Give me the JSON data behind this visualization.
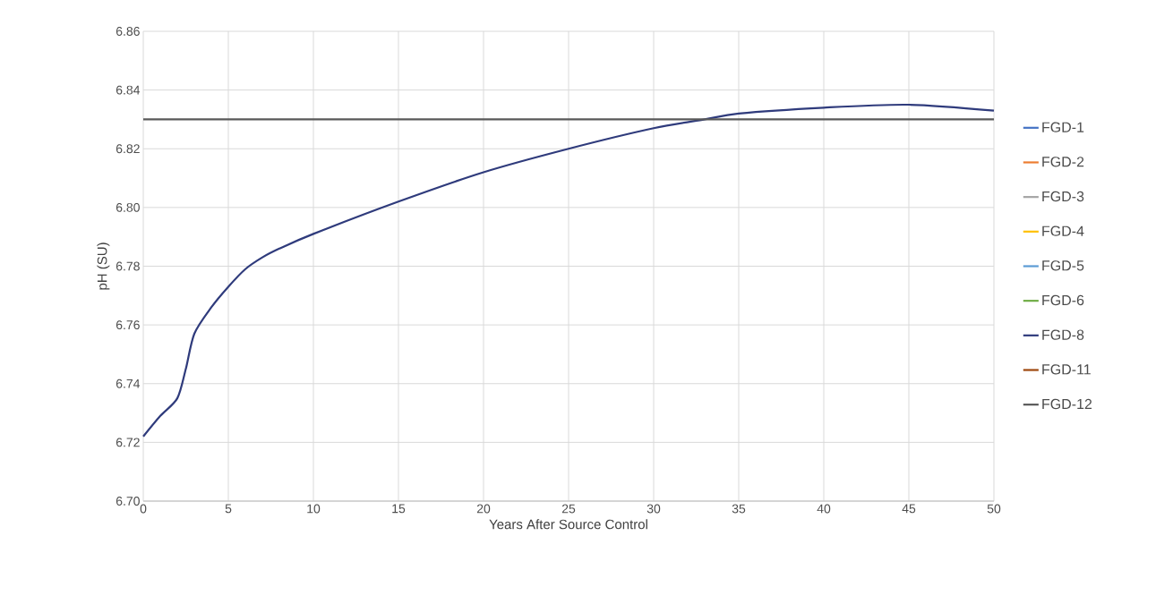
{
  "chart_data": {
    "type": "line",
    "xlabel": "Years After Source Control",
    "ylabel": "pH (SU)",
    "xlim": [
      0,
      50
    ],
    "ylim": [
      6.7,
      6.86
    ],
    "xticks": [
      0,
      5,
      10,
      15,
      20,
      25,
      30,
      35,
      40,
      45,
      50
    ],
    "yticks": [
      {
        "value": 6.7,
        "label": "6.70"
      },
      6.72,
      6.74,
      6.76,
      6.78,
      {
        "value": 6.8,
        "label": "6.80"
      },
      6.82,
      6.84,
      6.86
    ],
    "grid": true,
    "legend": "right",
    "marker": "none",
    "line_style": "solid",
    "series": [
      {
        "name": "FGD-1",
        "color": "#4472c4",
        "values": [
          null
        ]
      },
      {
        "name": "FGD-2",
        "color": "#ed7d31",
        "values": [
          null
        ]
      },
      {
        "name": "FGD-3",
        "color": "#a5a5a5",
        "values": [
          null
        ]
      },
      {
        "name": "FGD-4",
        "color": "#ffc000",
        "values": [
          null
        ]
      },
      {
        "name": "FGD-5",
        "color": "#5b9bd5",
        "values": [
          null
        ]
      },
      {
        "name": "FGD-6",
        "color": "#70ad47",
        "values": [
          null
        ]
      },
      {
        "name": "FGD-8",
        "color": "#2f3b7c",
        "x": [
          0,
          1,
          2,
          2.5,
          3,
          4,
          5,
          6,
          7,
          8,
          10,
          15,
          20,
          25,
          30,
          33,
          35,
          40,
          45,
          50
        ],
        "values": [
          6.722,
          6.729,
          6.735,
          6.745,
          6.757,
          6.766,
          6.773,
          6.779,
          6.783,
          6.786,
          6.791,
          6.802,
          6.812,
          6.82,
          6.827,
          6.83,
          6.832,
          6.834,
          6.835,
          6.833
        ]
      },
      {
        "name": "FGD-11",
        "color": "#9e480e",
        "values": [
          null
        ]
      },
      {
        "name": "FGD-12",
        "color": "#595959",
        "x": [
          0,
          50
        ],
        "values": [
          6.83,
          6.83
        ]
      }
    ]
  }
}
